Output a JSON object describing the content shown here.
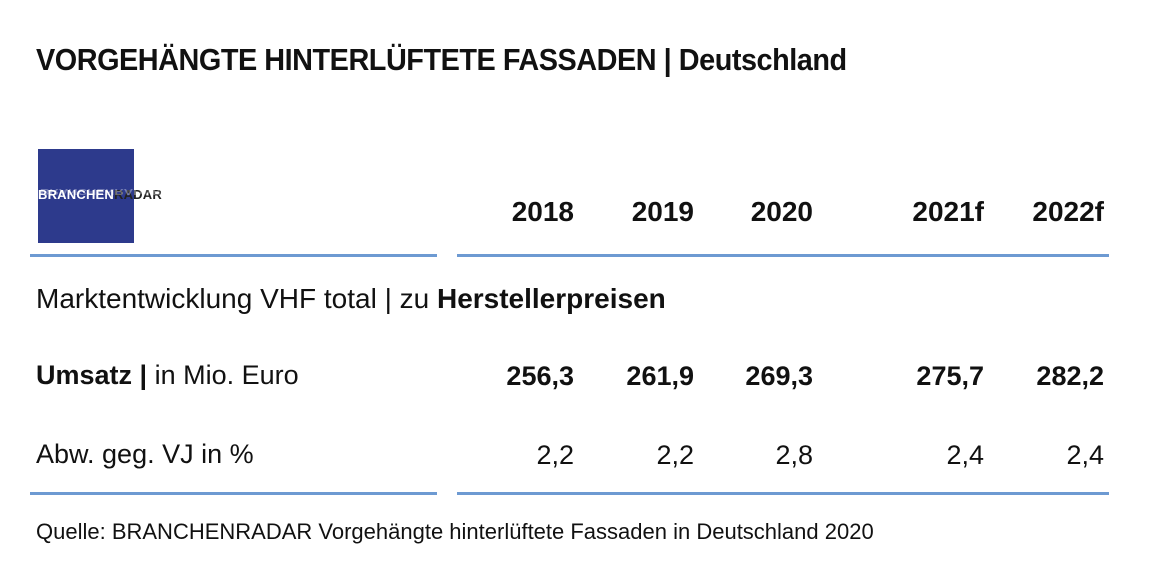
{
  "title": "VORGEHÄNGTE HINTERLÜFTETE FASSADEN | Deutschland",
  "logo": {
    "brand": "BRANCHEN",
    "radar": "RADAR"
  },
  "section": {
    "prefix": "Marktentwicklung VHF total | zu ",
    "emphasis": "Herstellerpreisen"
  },
  "rows": {
    "umsatz": {
      "label_bold": "Umsatz |",
      "label_rest": " in Mio. Euro"
    },
    "abw": {
      "label": "Abw. geg. VJ in %"
    }
  },
  "source": "Quelle: BRANCHENRADAR Vorgehängte hinterlüftete Fassaden in Deutschland 2020",
  "colors": {
    "accent_rule": "#6d9ad2",
    "logo_bg": "#2d3a8c"
  },
  "chart_data": {
    "type": "table",
    "columns": [
      "2018",
      "2019",
      "2020",
      "2021f",
      "2022f"
    ],
    "rows": [
      {
        "name": "Umsatz | in Mio. Euro",
        "values": [
          "256,3",
          "261,9",
          "269,3",
          "275,7",
          "282,2"
        ]
      },
      {
        "name": "Abw. geg. VJ in %",
        "values": [
          "2,2",
          "2,2",
          "2,8",
          "2,4",
          "2,4"
        ]
      }
    ]
  }
}
